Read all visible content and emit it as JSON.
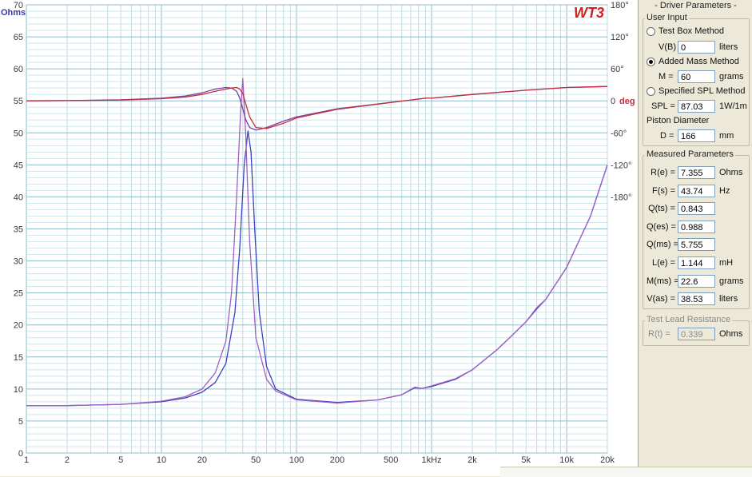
{
  "chart_data": {
    "type": "line",
    "logo": "WT3",
    "left_axis": {
      "unit_label": "Ohms",
      "min": 0,
      "max": 70,
      "ticks": [
        "0",
        "5",
        "10",
        "15",
        "20",
        "25",
        "30",
        "35",
        "40",
        "45",
        "50",
        "55",
        "60",
        "65",
        "70"
      ]
    },
    "right_axis": {
      "unit_label": "deg",
      "ticks": [
        {
          "value": 180,
          "label": "180°"
        },
        {
          "value": 120,
          "label": "120°"
        },
        {
          "value": 60,
          "label": "60°"
        },
        {
          "value": 0,
          "label": "0"
        },
        {
          "value": -60,
          "label": "-60°"
        },
        {
          "value": -120,
          "label": "-120°"
        },
        {
          "value": -180,
          "label": "-180°"
        }
      ]
    },
    "x_axis": {
      "scale": "log",
      "min": 1,
      "max": 20000,
      "ticks": [
        {
          "value": 1,
          "label": "1"
        },
        {
          "value": 2,
          "label": "2"
        },
        {
          "value": 5,
          "label": "5"
        },
        {
          "value": 10,
          "label": "10"
        },
        {
          "value": 20,
          "label": "20"
        },
        {
          "value": 50,
          "label": "50"
        },
        {
          "value": 100,
          "label": "100"
        },
        {
          "value": 200,
          "label": "200"
        },
        {
          "value": 500,
          "label": "500"
        },
        {
          "value": 1000,
          "label": "1kHz"
        },
        {
          "value": 2000,
          "label": "2k"
        },
        {
          "value": 5000,
          "label": "5k"
        },
        {
          "value": 10000,
          "label": "10k"
        },
        {
          "value": 20000,
          "label": "20k"
        }
      ]
    },
    "grid": true,
    "series": [
      {
        "color": "#4040c0",
        "axis": "left",
        "points": [
          [
            1,
            7.4
          ],
          [
            2,
            7.4
          ],
          [
            5,
            7.6
          ],
          [
            10,
            8
          ],
          [
            15,
            8.6
          ],
          [
            20,
            9.5
          ],
          [
            25,
            11
          ],
          [
            30,
            14
          ],
          [
            35,
            22
          ],
          [
            38,
            32
          ],
          [
            41,
            45
          ],
          [
            43.7,
            50.3
          ],
          [
            46,
            47
          ],
          [
            49,
            35
          ],
          [
            53,
            22
          ],
          [
            60,
            13.5
          ],
          [
            70,
            10
          ],
          [
            100,
            8.4
          ],
          [
            200,
            7.9
          ],
          [
            400,
            8.3
          ],
          [
            600,
            9.1
          ],
          [
            750,
            10.2
          ],
          [
            850,
            10.1
          ],
          [
            1000,
            10.4
          ],
          [
            1500,
            11.5
          ],
          [
            2000,
            13
          ],
          [
            3000,
            16
          ],
          [
            4000,
            18.5
          ],
          [
            5000,
            20.5
          ],
          [
            6000,
            22.5
          ],
          [
            7000,
            24
          ],
          [
            10000,
            29
          ],
          [
            15000,
            37
          ],
          [
            20000,
            45
          ]
        ]
      },
      {
        "color": "#a060c0",
        "axis": "left",
        "points": [
          [
            1,
            7.4
          ],
          [
            2,
            7.4
          ],
          [
            5,
            7.6
          ],
          [
            10,
            8.1
          ],
          [
            15,
            8.8
          ],
          [
            20,
            10
          ],
          [
            25,
            12.5
          ],
          [
            30,
            17.5
          ],
          [
            33,
            25
          ],
          [
            36,
            40
          ],
          [
            38.5,
            53
          ],
          [
            40,
            58.5
          ],
          [
            42,
            50
          ],
          [
            45,
            33
          ],
          [
            50,
            18
          ],
          [
            60,
            11.5
          ],
          [
            70,
            9.7
          ],
          [
            100,
            8.3
          ],
          [
            200,
            7.8
          ],
          [
            400,
            8.3
          ],
          [
            600,
            9.1
          ],
          [
            750,
            10.3
          ],
          [
            850,
            10.1
          ],
          [
            1000,
            10.5
          ],
          [
            1500,
            11.6
          ],
          [
            2000,
            13
          ],
          [
            3000,
            16
          ],
          [
            4000,
            18.5
          ],
          [
            5000,
            20.5
          ],
          [
            6000,
            22.7
          ],
          [
            7000,
            24
          ],
          [
            10000,
            29
          ],
          [
            15000,
            37
          ],
          [
            20000,
            45
          ]
        ]
      },
      {
        "color": "#8040a0",
        "axis": "right",
        "points": [
          [
            1,
            0
          ],
          [
            2,
            0.5
          ],
          [
            5,
            2
          ],
          [
            10,
            5
          ],
          [
            15,
            9
          ],
          [
            20,
            15
          ],
          [
            25,
            22
          ],
          [
            30,
            25
          ],
          [
            33,
            24
          ],
          [
            36,
            18
          ],
          [
            38,
            5
          ],
          [
            40,
            -15
          ],
          [
            42,
            -35
          ],
          [
            45,
            -50
          ],
          [
            50,
            -55
          ],
          [
            60,
            -50
          ],
          [
            80,
            -38
          ],
          [
            100,
            -30
          ],
          [
            200,
            -15
          ],
          [
            500,
            -3
          ],
          [
            900,
            5
          ],
          [
            1000,
            5
          ],
          [
            2000,
            12
          ],
          [
            5000,
            20
          ],
          [
            10000,
            25
          ],
          [
            20000,
            27
          ]
        ]
      },
      {
        "color": "#c03040",
        "axis": "right",
        "points": [
          [
            1,
            0
          ],
          [
            2,
            0.5
          ],
          [
            5,
            1.5
          ],
          [
            10,
            4
          ],
          [
            15,
            7
          ],
          [
            20,
            12
          ],
          [
            25,
            18
          ],
          [
            30,
            22
          ],
          [
            33,
            24
          ],
          [
            36,
            25
          ],
          [
            38,
            22
          ],
          [
            40,
            14
          ],
          [
            42,
            -5
          ],
          [
            45,
            -30
          ],
          [
            50,
            -50
          ],
          [
            60,
            -52
          ],
          [
            80,
            -42
          ],
          [
            100,
            -32
          ],
          [
            200,
            -16
          ],
          [
            500,
            -3
          ],
          [
            900,
            5
          ],
          [
            1000,
            5
          ],
          [
            2000,
            12
          ],
          [
            5000,
            20
          ],
          [
            10000,
            25
          ],
          [
            20000,
            27
          ]
        ]
      }
    ]
  },
  "panel": {
    "title": "- Driver Parameters -",
    "user_input": {
      "title": "User Input",
      "test_box": {
        "label": "Test Box Method",
        "selected": false,
        "var": "V(B) =",
        "value": "0",
        "unit": "liters"
      },
      "added_mass": {
        "label": "Added Mass Method",
        "selected": true,
        "var": "M =",
        "value": "60",
        "unit": "grams"
      },
      "specified_spl": {
        "label": "Specified SPL Method",
        "selected": false,
        "var": "SPL =",
        "value": "87.03",
        "unit": "1W/1m"
      },
      "piston": {
        "label": "Piston Diameter",
        "var": "D =",
        "value": "166",
        "unit": "mm"
      }
    },
    "measured": {
      "title": "Measured Parameters",
      "rows": [
        {
          "var": "R(e) =",
          "value": "7.355",
          "unit": "Ohms"
        },
        {
          "var": "F(s) =",
          "value": "43.74",
          "unit": "Hz"
        },
        {
          "var": "Q(ts) =",
          "value": "0.843",
          "unit": ""
        },
        {
          "var": "Q(es) =",
          "value": "0.988",
          "unit": ""
        },
        {
          "var": "Q(ms) =",
          "value": "5.755",
          "unit": ""
        },
        {
          "var": "L(e) =",
          "value": "1.144",
          "unit": "mH"
        },
        {
          "var": "M(ms) =",
          "value": "22.6",
          "unit": "grams"
        },
        {
          "var": "V(as) =",
          "value": "38.53",
          "unit": "liters"
        }
      ]
    },
    "lead": {
      "title": "Test Lead Resistance",
      "var": "R(t) =",
      "value": "0.339",
      "unit": "Ohms"
    }
  }
}
